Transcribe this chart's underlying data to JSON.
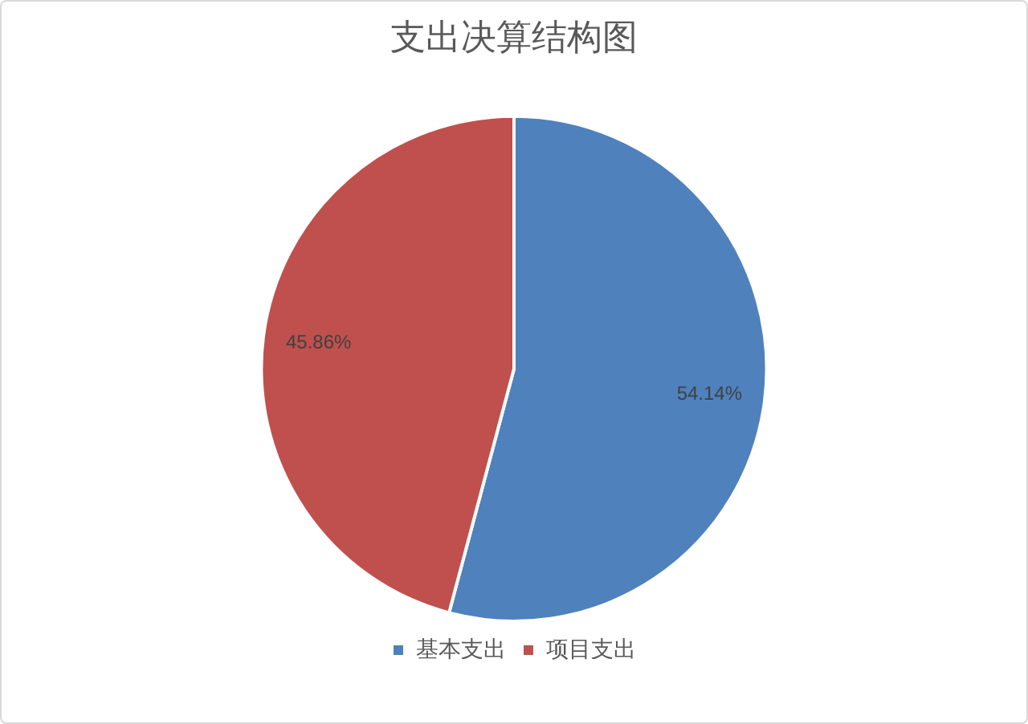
{
  "chart_data": {
    "type": "pie",
    "title": "支出决算结构图",
    "categories": [
      "基本支出",
      "项目支出"
    ],
    "values": [
      54.14,
      45.86
    ],
    "colors": [
      "#4f81bd",
      "#c0504d"
    ],
    "value_labels": [
      "54.14%",
      "45.86%"
    ],
    "legend": "bottom"
  }
}
